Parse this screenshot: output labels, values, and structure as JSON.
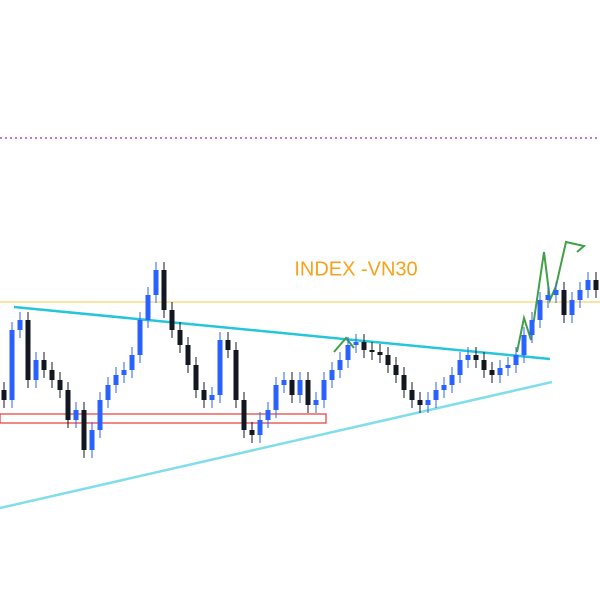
{
  "chart_data": {
    "type": "candlestick",
    "title": "INDEX -VN30",
    "open": [
      210,
      200,
      270,
      280,
      220,
      240,
      230,
      220,
      210,
      180,
      190,
      150,
      170,
      200,
      215,
      225,
      230,
      245,
      280,
      305,
      330,
      290,
      270,
      255,
      235,
      210,
      200,
      205,
      260,
      250,
      200,
      170,
      165,
      180,
      190,
      215,
      220,
      205,
      220,
      195,
      200,
      220,
      230,
      240,
      255,
      258,
      250,
      248,
      245,
      235,
      225,
      210,
      200,
      195,
      200,
      210,
      215,
      225,
      240,
      245,
      240,
      230,
      225,
      232,
      235,
      245,
      265,
      280,
      300,
      305,
      310,
      285,
      300,
      310,
      320
    ],
    "high": [
      218,
      278,
      288,
      288,
      248,
      248,
      238,
      228,
      218,
      198,
      198,
      178,
      208,
      223,
      233,
      238,
      253,
      288,
      313,
      338,
      338,
      298,
      278,
      263,
      243,
      218,
      213,
      268,
      268,
      258,
      208,
      178,
      188,
      198,
      223,
      228,
      228,
      228,
      228,
      208,
      228,
      238,
      248,
      263,
      266,
      266,
      258,
      256,
      253,
      243,
      233,
      218,
      208,
      208,
      218,
      223,
      233,
      248,
      253,
      253,
      248,
      238,
      240,
      243,
      253,
      273,
      288,
      308,
      313,
      318,
      318,
      308,
      318,
      328,
      328
    ],
    "low": [
      192,
      192,
      262,
      212,
      212,
      222,
      212,
      202,
      172,
      172,
      142,
      142,
      162,
      192,
      207,
      217,
      222,
      237,
      272,
      297,
      282,
      262,
      247,
      227,
      202,
      192,
      192,
      197,
      242,
      192,
      162,
      157,
      157,
      172,
      182,
      207,
      197,
      197,
      187,
      187,
      192,
      212,
      222,
      232,
      247,
      242,
      240,
      237,
      227,
      217,
      202,
      192,
      187,
      187,
      192,
      202,
      207,
      217,
      232,
      232,
      222,
      217,
      217,
      224,
      227,
      237,
      257,
      272,
      292,
      297,
      277,
      277,
      292,
      302,
      302
    ],
    "close": [
      200,
      270,
      280,
      220,
      240,
      230,
      220,
      210,
      180,
      190,
      150,
      170,
      200,
      215,
      225,
      230,
      245,
      280,
      305,
      330,
      290,
      270,
      255,
      235,
      210,
      200,
      205,
      260,
      250,
      200,
      170,
      165,
      180,
      190,
      215,
      220,
      205,
      220,
      195,
      200,
      220,
      230,
      240,
      255,
      258,
      250,
      248,
      245,
      235,
      225,
      210,
      200,
      195,
      200,
      210,
      215,
      225,
      240,
      245,
      240,
      230,
      225,
      232,
      235,
      245,
      265,
      280,
      300,
      305,
      310,
      285,
      300,
      310,
      320,
      310
    ],
    "up_color": "#2962ff",
    "down_color": "#131722"
  }
}
